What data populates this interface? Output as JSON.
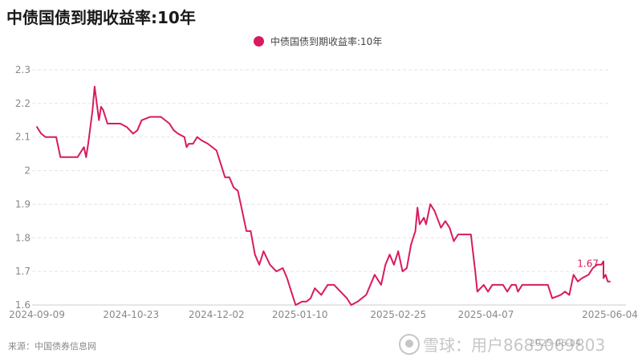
{
  "title": "中债国债到期收益率:10年",
  "source": "来源：中国债券信息网",
  "watermark": {
    "brand": "雪球：用户8685069803",
    "sub": "2025-06-04"
  },
  "colors": {
    "series": "#d81b60",
    "grid": "#e3e3e3",
    "axis_text": "#888888",
    "axis_line": "#cccccc"
  },
  "chart_data": {
    "type": "line",
    "title": "中债国债到期收益率:10年",
    "xlabel": "",
    "ylabel": "",
    "x_ticks": [
      "2024-09-09",
      "2024-10-23",
      "2024-12-02",
      "2025-01-10",
      "2025-02-25",
      "2025-04-07",
      "2025-06-04"
    ],
    "y_ticks": [
      "1.6",
      "1.7",
      "1.8",
      "1.9",
      "2",
      "2.1",
      "2.2",
      "2.3"
    ],
    "ylim": [
      1.6,
      2.3
    ],
    "xlim": [
      "2024-09-09",
      "2025-06-04"
    ],
    "grid": true,
    "legend": "top-center",
    "last_value_label": "1.67",
    "series": [
      {
        "name": "中债国债到期收益率:10年",
        "points": [
          [
            "2024-09-09",
            2.13
          ],
          [
            "2024-09-11",
            2.11
          ],
          [
            "2024-09-13",
            2.1
          ],
          [
            "2024-09-18",
            2.1
          ],
          [
            "2024-09-20",
            2.04
          ],
          [
            "2024-09-26",
            2.04
          ],
          [
            "2024-09-28",
            2.04
          ],
          [
            "2024-10-01",
            2.07
          ],
          [
            "2024-10-02",
            2.04
          ],
          [
            "2024-10-03",
            2.08
          ],
          [
            "2024-10-05",
            2.18
          ],
          [
            "2024-10-06",
            2.25
          ],
          [
            "2024-10-08",
            2.15
          ],
          [
            "2024-10-09",
            2.19
          ],
          [
            "2024-10-10",
            2.18
          ],
          [
            "2024-10-12",
            2.14
          ],
          [
            "2024-10-18",
            2.14
          ],
          [
            "2024-10-21",
            2.13
          ],
          [
            "2024-10-24",
            2.11
          ],
          [
            "2024-10-26",
            2.12
          ],
          [
            "2024-10-28",
            2.15
          ],
          [
            "2024-11-01",
            2.16
          ],
          [
            "2024-11-06",
            2.16
          ],
          [
            "2024-11-10",
            2.14
          ],
          [
            "2024-11-12",
            2.12
          ],
          [
            "2024-11-14",
            2.11
          ],
          [
            "2024-11-17",
            2.1
          ],
          [
            "2024-11-18",
            2.07
          ],
          [
            "2024-11-19",
            2.08
          ],
          [
            "2024-11-21",
            2.08
          ],
          [
            "2024-11-23",
            2.1
          ],
          [
            "2024-11-25",
            2.09
          ],
          [
            "2024-11-28",
            2.08
          ],
          [
            "2024-12-02",
            2.06
          ],
          [
            "2024-12-04",
            2.02
          ],
          [
            "2024-12-06",
            1.98
          ],
          [
            "2024-12-08",
            1.98
          ],
          [
            "2024-12-10",
            1.95
          ],
          [
            "2024-12-12",
            1.94
          ],
          [
            "2024-12-14",
            1.88
          ],
          [
            "2024-12-16",
            1.82
          ],
          [
            "2024-12-18",
            1.82
          ],
          [
            "2024-12-20",
            1.75
          ],
          [
            "2024-12-22",
            1.72
          ],
          [
            "2024-12-24",
            1.76
          ],
          [
            "2024-12-27",
            1.72
          ],
          [
            "2024-12-30",
            1.7
          ],
          [
            "2025-01-02",
            1.71
          ],
          [
            "2025-01-04",
            1.68
          ],
          [
            "2025-01-06",
            1.64
          ],
          [
            "2025-01-08",
            1.6
          ],
          [
            "2025-01-11",
            1.61
          ],
          [
            "2025-01-13",
            1.61
          ],
          [
            "2025-01-15",
            1.62
          ],
          [
            "2025-01-17",
            1.65
          ],
          [
            "2025-01-20",
            1.63
          ],
          [
            "2025-01-23",
            1.66
          ],
          [
            "2025-01-26",
            1.66
          ],
          [
            "2025-01-29",
            1.64
          ],
          [
            "2025-02-01",
            1.62
          ],
          [
            "2025-02-03",
            1.6
          ],
          [
            "2025-02-06",
            1.61
          ],
          [
            "2025-02-10",
            1.63
          ],
          [
            "2025-02-14",
            1.69
          ],
          [
            "2025-02-17",
            1.66
          ],
          [
            "2025-02-19",
            1.72
          ],
          [
            "2025-02-21",
            1.75
          ],
          [
            "2025-02-23",
            1.72
          ],
          [
            "2025-02-25",
            1.76
          ],
          [
            "2025-02-27",
            1.7
          ],
          [
            "2025-03-01",
            1.71
          ],
          [
            "2025-03-03",
            1.78
          ],
          [
            "2025-03-05",
            1.82
          ],
          [
            "2025-03-06",
            1.89
          ],
          [
            "2025-03-07",
            1.84
          ],
          [
            "2025-03-09",
            1.86
          ],
          [
            "2025-03-10",
            1.84
          ],
          [
            "2025-03-12",
            1.9
          ],
          [
            "2025-03-14",
            1.88
          ],
          [
            "2025-03-17",
            1.83
          ],
          [
            "2025-03-19",
            1.85
          ],
          [
            "2025-03-21",
            1.83
          ],
          [
            "2025-03-23",
            1.79
          ],
          [
            "2025-03-25",
            1.81
          ],
          [
            "2025-03-31",
            1.81
          ],
          [
            "2025-04-02",
            1.7
          ],
          [
            "2025-04-03",
            1.64
          ],
          [
            "2025-04-06",
            1.66
          ],
          [
            "2025-04-08",
            1.64
          ],
          [
            "2025-04-10",
            1.66
          ],
          [
            "2025-04-15",
            1.66
          ],
          [
            "2025-04-17",
            1.64
          ],
          [
            "2025-04-19",
            1.66
          ],
          [
            "2025-04-21",
            1.66
          ],
          [
            "2025-04-22",
            1.64
          ],
          [
            "2025-04-24",
            1.66
          ],
          [
            "2025-05-06",
            1.66
          ],
          [
            "2025-05-08",
            1.62
          ],
          [
            "2025-05-12",
            1.63
          ],
          [
            "2025-05-14",
            1.64
          ],
          [
            "2025-05-16",
            1.63
          ],
          [
            "2025-05-18",
            1.69
          ],
          [
            "2025-05-20",
            1.67
          ],
          [
            "2025-05-22",
            1.68
          ],
          [
            "2025-05-25",
            1.69
          ],
          [
            "2025-05-27",
            1.71
          ],
          [
            "2025-05-29",
            1.72
          ],
          [
            "2025-05-31",
            1.72
          ],
          [
            "2025-06-01",
            1.73
          ],
          [
            "2025-06-01",
            1.68
          ],
          [
            "2025-06-02",
            1.69
          ],
          [
            "2025-06-03",
            1.67
          ],
          [
            "2025-06-04",
            1.67
          ]
        ]
      }
    ]
  }
}
